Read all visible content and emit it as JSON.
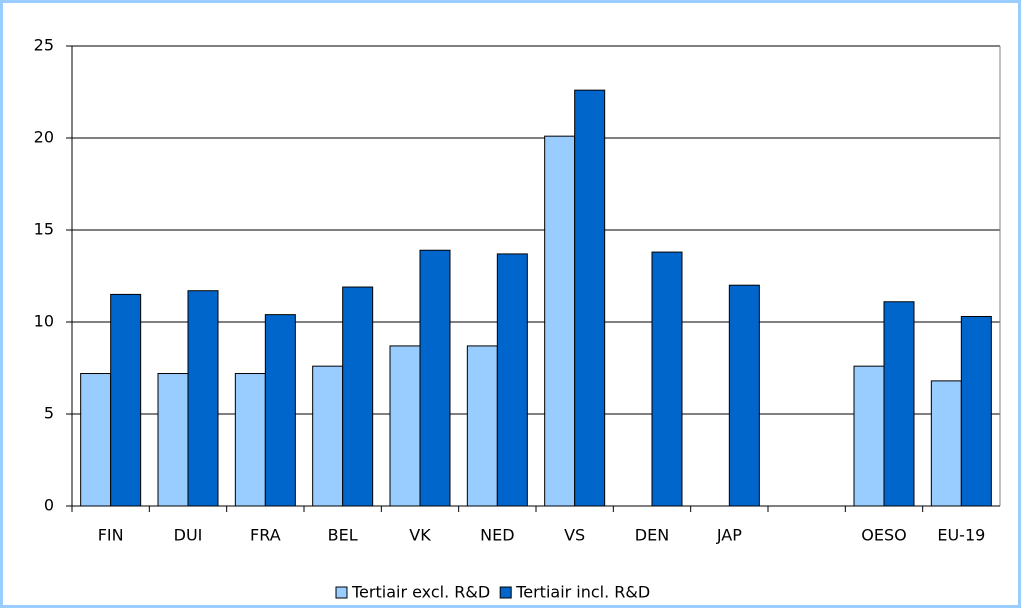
{
  "chart_data": {
    "type": "bar",
    "categories": [
      "FIN",
      "DUI",
      "FRA",
      "BEL",
      "VK",
      "NED",
      "VS",
      "DEN",
      "JAP",
      null,
      "OESO",
      "EU-19"
    ],
    "series": [
      {
        "name": "Tertiair excl. R&D",
        "color": "#99ccff",
        "values": [
          7.2,
          7.2,
          7.2,
          7.6,
          8.7,
          8.7,
          20.1,
          null,
          null,
          null,
          7.6,
          6.8
        ]
      },
      {
        "name": "Tertiair incl. R&D",
        "color": "#0066cc",
        "values": [
          11.5,
          11.7,
          10.4,
          11.9,
          13.9,
          13.7,
          22.6,
          13.8,
          12.0,
          null,
          11.1,
          10.3
        ]
      }
    ],
    "ylim": [
      0,
      25
    ],
    "yticks": [
      0,
      5,
      10,
      15,
      20,
      25
    ],
    "grid": true,
    "legend": "bottom"
  }
}
